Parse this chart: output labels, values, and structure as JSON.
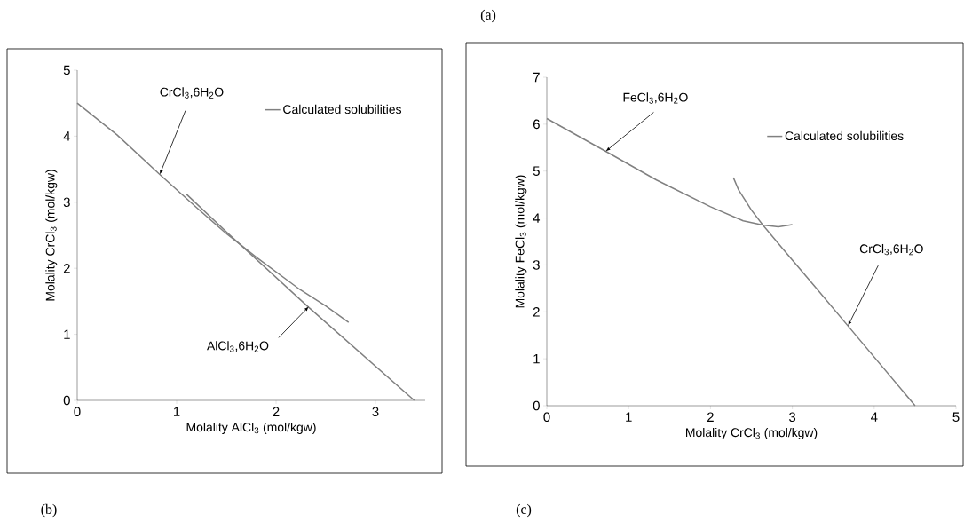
{
  "chart_data": [
    {
      "type": "line",
      "title": "(b)",
      "xlabel": "Molality AlCl$_{3}$ (mol/kgw)",
      "ylabel": "Molality CrCl$_{3}$ (mol/kgw)",
      "xlim": [
        0,
        3.5
      ],
      "ylim": [
        0,
        5
      ],
      "xticks": [
        0,
        1,
        2,
        3
      ],
      "yticks": [
        0,
        1,
        2,
        3,
        4,
        5
      ],
      "grid": false,
      "legend": "top right",
      "line_style": "solid",
      "series": [
        {
          "name": "Calculated solubilities",
          "color": "#808080",
          "x": [
            0,
            0.4,
            0.83,
            1.2,
            1.48,
            1.8,
            2.22,
            2.5,
            2.73
          ],
          "values": [
            4.5,
            4.02,
            3.42,
            2.92,
            2.55,
            2.17,
            1.7,
            1.43,
            1.18
          ]
        },
        {
          "color": "#808080",
          "x": [
            1.1,
            1.48,
            2.32,
            3.39
          ],
          "values": [
            3.12,
            2.58,
            1.42,
            0
          ]
        }
      ],
      "annotations": [
        {
          "text": "CrCl$_{3}$,6H$_{2}$O",
          "x": 0.83,
          "y": 3.42
        },
        {
          "text": "AlCl$_{3}$,6H$_{2}$O",
          "x": 2.33,
          "y": 1.42
        },
        "(a)"
      ]
    },
    {
      "type": "line",
      "title": "(c)",
      "xlabel": "Molality CrCl$_{3}$ (mol/kgw)",
      "ylabel": "Molality FeCl$_{3}$ (mol/kgw)",
      "xlim": [
        0,
        5
      ],
      "ylim": [
        0,
        7
      ],
      "xticks": [
        0,
        1,
        2,
        3,
        4,
        5
      ],
      "yticks": [
        0,
        1,
        2,
        3,
        4,
        5,
        6,
        7
      ],
      "grid": false,
      "legend": "top right",
      "line_style": "solid",
      "series": [
        {
          "name": "Calculated solubilities",
          "color": "#808080",
          "x": [
            0,
            0.72,
            1.34,
            2.0,
            2.4,
            2.64,
            2.83,
            3.0
          ],
          "values": [
            6.12,
            5.42,
            4.81,
            4.24,
            3.94,
            3.85,
            3.81,
            3.86
          ]
        },
        {
          "color": "#808080",
          "x": [
            2.28,
            2.34,
            2.5,
            2.64,
            2.89,
            3.28,
            3.68,
            4.5
          ],
          "values": [
            4.86,
            4.61,
            4.17,
            3.85,
            3.33,
            2.53,
            1.7,
            0
          ]
        }
      ],
      "annotations": [
        {
          "text": "FeCl$_{3}$,6H$_{2}$O",
          "x": 0.72,
          "y": 5.42
        },
        {
          "text": "CrCl$_{3}$,6H$_{2}$O",
          "x": 3.68,
          "y": 1.7
        }
      ]
    }
  ]
}
